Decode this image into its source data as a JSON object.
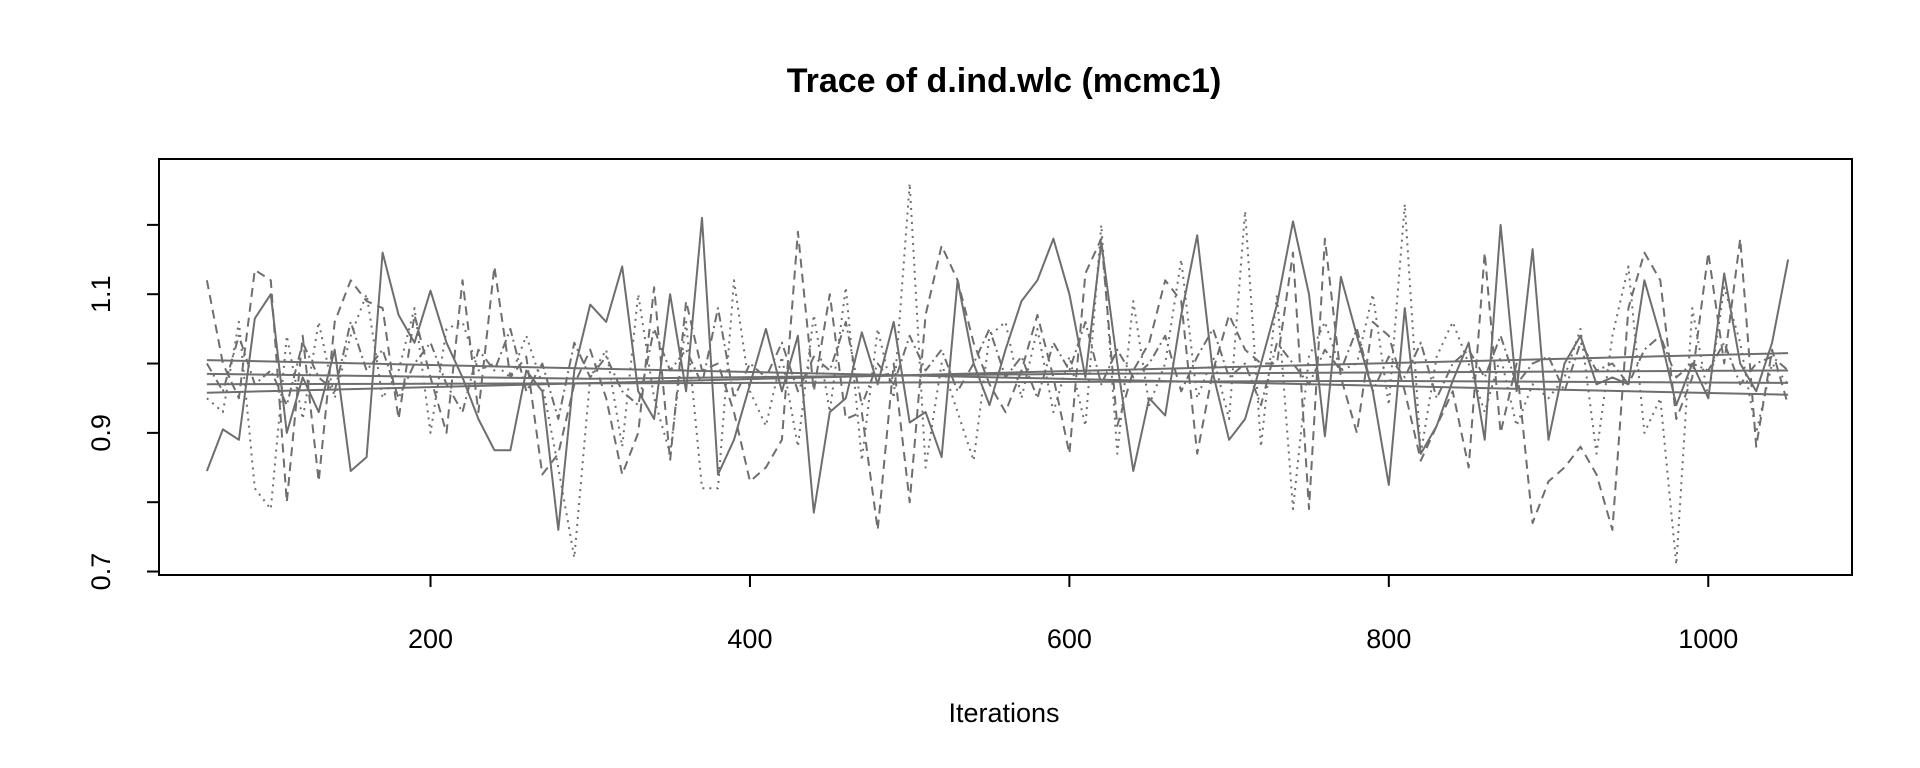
{
  "chart_data": {
    "type": "line",
    "title": "Trace of d.ind.wlc (mcmc1)",
    "xlabel": "Iterations",
    "ylabel": "",
    "xlim": [
      30,
      1090
    ],
    "ylim": [
      0.695,
      1.295
    ],
    "xticks": [
      200,
      400,
      600,
      800,
      1000
    ],
    "xtick_labels": [
      "200",
      "400",
      "600",
      "800",
      "1000"
    ],
    "yticks": [
      0.7,
      0.8,
      0.9,
      1.0,
      1.1,
      1.2
    ],
    "ytick_labels": [
      "0.7",
      "",
      "0.9",
      "",
      "1.1",
      ""
    ],
    "grid": false,
    "legend": "none",
    "line_color": "#6e6e6e",
    "series": [
      {
        "style": "solid",
        "x": [
          60,
          70,
          80,
          90,
          100,
          110,
          120,
          130,
          140,
          150,
          160,
          170,
          180,
          190,
          200,
          210,
          220,
          230,
          240,
          250,
          260,
          270,
          280,
          290,
          300,
          310,
          320,
          330,
          340,
          350,
          360,
          370,
          380,
          390,
          400,
          410,
          420,
          430,
          440,
          450,
          460,
          470,
          480,
          490,
          500,
          510,
          520,
          530,
          540,
          550,
          560,
          570,
          580,
          590,
          600,
          610,
          620,
          630,
          640,
          650,
          660,
          670,
          680,
          690,
          700,
          710,
          720,
          730,
          740,
          750,
          760,
          770,
          780,
          790,
          800,
          810,
          820,
          830,
          840,
          850,
          860,
          870,
          880,
          890,
          900,
          910,
          920,
          930,
          940,
          950,
          960,
          970,
          980,
          990,
          1000,
          1010,
          1020,
          1030,
          1040,
          1050
        ],
        "y": [
          0.845,
          0.905,
          0.89,
          1.065,
          1.1,
          0.9,
          0.98,
          0.93,
          1.02,
          0.845,
          0.865,
          1.16,
          1.07,
          1.03,
          1.105,
          1.03,
          0.98,
          0.92,
          0.875,
          0.875,
          0.99,
          0.96,
          0.76,
          0.99,
          1.085,
          1.06,
          1.14,
          0.96,
          0.92,
          1.1,
          0.96,
          1.21,
          0.84,
          0.89,
          0.97,
          1.05,
          0.96,
          1.04,
          0.785,
          0.93,
          0.95,
          1.045,
          0.97,
          1.06,
          0.915,
          0.93,
          0.865,
          1.12,
          1.0,
          0.94,
          1.02,
          1.09,
          1.12,
          1.18,
          1.1,
          0.98,
          1.175,
          1.0,
          0.845,
          0.95,
          0.925,
          1.07,
          1.185,
          0.985,
          0.89,
          0.92,
          1.0,
          1.085,
          1.205,
          1.1,
          0.895,
          1.125,
          1.04,
          0.96,
          0.825,
          1.08,
          0.87,
          0.91,
          0.975,
          1.03,
          0.89,
          1.2,
          0.96,
          1.165,
          0.89,
          1.0,
          1.04,
          0.97,
          0.98,
          0.97,
          1.12,
          1.04,
          0.94,
          1.0,
          0.95,
          1.13,
          1.0,
          0.96,
          1.03,
          1.15
        ]
      },
      {
        "style": "dashed",
        "x": [
          60,
          70,
          80,
          90,
          100,
          110,
          120,
          130,
          140,
          150,
          160,
          170,
          180,
          190,
          200,
          210,
          220,
          230,
          240,
          250,
          260,
          270,
          280,
          290,
          300,
          310,
          320,
          330,
          340,
          350,
          360,
          370,
          380,
          390,
          400,
          410,
          420,
          430,
          440,
          450,
          460,
          470,
          480,
          490,
          500,
          510,
          520,
          530,
          540,
          550,
          560,
          570,
          580,
          590,
          600,
          610,
          620,
          630,
          640,
          650,
          660,
          670,
          680,
          690,
          700,
          710,
          720,
          730,
          740,
          750,
          760,
          770,
          780,
          790,
          800,
          810,
          820,
          830,
          840,
          850,
          860,
          870,
          880,
          890,
          900,
          910,
          920,
          930,
          940,
          950,
          960,
          970,
          980,
          990,
          1000,
          1010,
          1020,
          1030,
          1040,
          1050
        ],
        "y": [
          1.12,
          1.0,
          0.95,
          1.135,
          1.12,
          0.8,
          1.04,
          0.83,
          1.06,
          1.12,
          1.09,
          1.08,
          0.92,
          1.07,
          0.98,
          0.9,
          1.12,
          0.93,
          1.14,
          0.98,
          1.01,
          0.84,
          0.87,
          0.97,
          1.02,
          0.95,
          0.84,
          0.9,
          1.11,
          0.86,
          1.09,
          0.99,
          1.0,
          0.93,
          0.83,
          0.85,
          0.89,
          1.19,
          0.96,
          1.1,
          0.92,
          0.93,
          0.76,
          1.0,
          0.8,
          1.07,
          1.17,
          1.12,
          1.03,
          0.97,
          0.93,
          0.99,
          1.07,
          0.98,
          0.87,
          1.13,
          1.18,
          0.91,
          0.99,
          1.03,
          1.12,
          1.09,
          0.87,
          0.99,
          1.07,
          1.02,
          1.0,
          1.0,
          1.16,
          0.79,
          1.18,
          0.98,
          0.9,
          1.06,
          1.04,
          0.96,
          0.86,
          0.91,
          0.96,
          0.85,
          1.16,
          0.9,
          1.0,
          0.77,
          0.83,
          0.85,
          0.88,
          0.84,
          0.76,
          1.08,
          1.16,
          1.12,
          0.92,
          0.98,
          1.16,
          1.0,
          1.18,
          0.88,
          1.02,
          0.94
        ]
      },
      {
        "style": "dotted",
        "x": [
          60,
          70,
          80,
          90,
          100,
          110,
          120,
          130,
          140,
          150,
          160,
          170,
          180,
          190,
          200,
          210,
          220,
          230,
          240,
          250,
          260,
          270,
          280,
          290,
          300,
          310,
          320,
          330,
          340,
          350,
          360,
          370,
          380,
          390,
          400,
          410,
          420,
          430,
          440,
          450,
          460,
          470,
          480,
          490,
          500,
          510,
          520,
          530,
          540,
          550,
          560,
          570,
          580,
          590,
          600,
          610,
          620,
          630,
          640,
          650,
          660,
          670,
          680,
          690,
          700,
          710,
          720,
          730,
          740,
          750,
          760,
          770,
          780,
          790,
          800,
          810,
          820,
          830,
          840,
          850,
          860,
          870,
          880,
          890,
          900,
          910,
          920,
          930,
          940,
          950,
          960,
          970,
          980,
          990,
          1000,
          1010,
          1020,
          1030,
          1040,
          1050
        ],
        "y": [
          0.95,
          0.93,
          1.06,
          0.82,
          0.79,
          1.04,
          0.92,
          1.06,
          0.95,
          1.04,
          1.1,
          0.95,
          0.99,
          1.08,
          0.9,
          1.05,
          1.06,
          0.99,
          1.0,
          0.98,
          1.04,
          0.97,
          0.85,
          0.72,
          0.98,
          1.02,
          0.88,
          1.1,
          0.95,
          0.87,
          1.06,
          0.82,
          0.82,
          1.12,
          0.96,
          0.91,
          1.01,
          0.88,
          1.07,
          0.93,
          1.11,
          0.86,
          1.05,
          0.95,
          1.26,
          0.85,
          1.0,
          0.93,
          0.86,
          1.04,
          1.06,
          0.95,
          1.05,
          0.93,
          1.01,
          0.91,
          1.2,
          0.87,
          1.09,
          0.94,
          1.0,
          1.15,
          0.95,
          1.01,
          0.92,
          1.22,
          0.88,
          1.1,
          0.79,
          1.01,
          1.06,
          0.99,
          1.0,
          1.1,
          0.94,
          1.23,
          0.87,
          1.01,
          1.06,
          1.0,
          0.93,
          1.01,
          0.91,
          0.97,
          0.95,
          0.98,
          1.05,
          0.87,
          1.04,
          1.14,
          0.9,
          0.95,
          0.71,
          1.08,
          0.95,
          1.11,
          1.03,
          0.9,
          1.0,
          0.97
        ]
      },
      {
        "style": "dashdot",
        "x": [
          60,
          70,
          80,
          90,
          100,
          110,
          120,
          130,
          140,
          150,
          160,
          170,
          180,
          190,
          200,
          210,
          220,
          230,
          240,
          250,
          260,
          270,
          280,
          290,
          300,
          310,
          320,
          330,
          340,
          350,
          360,
          370,
          380,
          390,
          400,
          410,
          420,
          430,
          440,
          450,
          460,
          470,
          480,
          490,
          500,
          510,
          520,
          530,
          540,
          550,
          560,
          570,
          580,
          590,
          600,
          610,
          620,
          630,
          640,
          650,
          660,
          670,
          680,
          690,
          700,
          710,
          720,
          730,
          740,
          750,
          760,
          770,
          780,
          790,
          800,
          810,
          820,
          830,
          840,
          850,
          860,
          870,
          880,
          890,
          900,
          910,
          920,
          930,
          940,
          950,
          960,
          970,
          980,
          990,
          1000,
          1010,
          1020,
          1030,
          1040,
          1050
        ],
        "y": [
          1.0,
          0.96,
          1.04,
          0.97,
          0.99,
          0.94,
          1.03,
          0.98,
          0.96,
          1.06,
          0.99,
          1.02,
          0.95,
          1.0,
          1.03,
          0.97,
          0.93,
          1.02,
          0.99,
          1.05,
          0.96,
          1.0,
          0.92,
          1.03,
          0.98,
          1.01,
          0.96,
          0.94,
          1.05,
          0.99,
          1.02,
          0.97,
          1.08,
          0.95,
          1.0,
          0.98,
          1.03,
          0.96,
          1.01,
          0.99,
          1.06,
          0.94,
          1.0,
          0.97,
          1.04,
          0.99,
          1.02,
          0.96,
          1.0,
          1.05,
          0.98,
          1.01,
          0.95,
          1.03,
          0.99,
          1.06,
          0.97,
          1.02,
          0.98,
          1.0,
          1.04,
          0.96,
          1.01,
          1.05,
          0.98,
          1.0,
          0.94,
          1.03,
          1.0,
          0.97,
          1.02,
          0.99,
          1.05,
          0.96,
          1.01,
          0.98,
          1.03,
          0.95,
          1.0,
          1.02,
          0.98,
          1.04,
          0.97,
          1.0,
          1.01,
          0.96,
          1.03,
          0.99,
          1.0,
          0.97,
          1.02,
          1.04,
          0.98,
          1.0,
          0.99,
          1.03,
          0.97,
          1.0,
          1.01,
          0.99
        ]
      }
    ],
    "smoothers": [
      {
        "x": [
          60,
          1050
        ],
        "y": [
          1.005,
          0.955
        ]
      },
      {
        "x": [
          60,
          1050
        ],
        "y": [
          0.958,
          1.015
        ]
      },
      {
        "x": [
          60,
          300,
          600,
          1050
        ],
        "y": [
          0.985,
          0.978,
          0.985,
          0.99
        ]
      },
      {
        "x": [
          60,
          400,
          800,
          1050
        ],
        "y": [
          0.97,
          0.972,
          0.975,
          0.972
        ]
      }
    ]
  }
}
